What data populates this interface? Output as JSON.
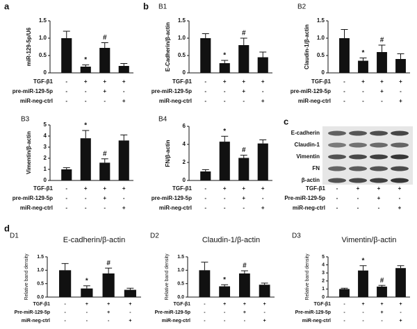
{
  "group_labels": [
    "b",
    "d"
  ],
  "western_blot": {
    "panel": "c",
    "bands": [
      "E-cadherin",
      "Claudin-1",
      "Vimentin",
      "FN",
      "β-actin"
    ],
    "treatments": [
      {
        "name": "TGF-β1",
        "signs": [
          "-",
          "+",
          "+",
          "+"
        ]
      },
      {
        "name": "Pre-miR-129-5p",
        "signs": [
          "-",
          "-",
          "+",
          "-"
        ]
      },
      {
        "name": "miR-neg-ctrl",
        "signs": [
          "-",
          "-",
          "-",
          "+"
        ]
      }
    ]
  },
  "chart_data": [
    {
      "type": "bar",
      "panel": "a",
      "y_label": "miR-129-5p/U6",
      "color": "#111111",
      "values": [
        1.0,
        0.18,
        0.72,
        0.2
      ],
      "errors": [
        0.2,
        0.05,
        0.15,
        0.07
      ],
      "annotations": [
        null,
        "*",
        "#",
        null
      ],
      "ylim": [
        0,
        1.5
      ],
      "yticks": [
        0,
        0.5,
        {
          "value": 1,
          "label": "1.0"
        },
        1.5
      ],
      "treatments": [
        {
          "name": "TGF-β1",
          "signs": [
            "-",
            "+",
            "+",
            "+"
          ]
        },
        {
          "name": "pre-miR-129-5p",
          "signs": [
            "-",
            "-",
            "+",
            "-"
          ]
        },
        {
          "name": "miR-neg-ctrl",
          "signs": [
            "-",
            "-",
            "-",
            "+"
          ]
        }
      ]
    },
    {
      "type": "bar",
      "panel": "B1",
      "y_label": "E-Cadherin/β-actin",
      "color": "#111111",
      "values": [
        1.0,
        0.28,
        0.8,
        0.45
      ],
      "errors": [
        0.13,
        0.08,
        0.2,
        0.15
      ],
      "annotations": [
        null,
        "*",
        "#",
        null
      ],
      "ylim": [
        0,
        1.5
      ],
      "yticks": [
        0,
        0.5,
        {
          "value": 1,
          "label": "1.0"
        },
        1.5
      ],
      "treatments": [
        {
          "name": "TGF-β1",
          "signs": [
            "-",
            "+",
            "+",
            "+"
          ]
        },
        {
          "name": "pre-miR-129-5p",
          "signs": [
            "-",
            "-",
            "+",
            "-"
          ]
        },
        {
          "name": "miR-neg-ctrl",
          "signs": [
            "-",
            "-",
            "-",
            "+"
          ]
        }
      ]
    },
    {
      "type": "bar",
      "panel": "B2",
      "y_label": "Claudin-1/β-actin",
      "color": "#111111",
      "values": [
        1.0,
        0.35,
        0.6,
        0.4
      ],
      "errors": [
        0.25,
        0.08,
        0.2,
        0.15
      ],
      "annotations": [
        null,
        "*",
        "#",
        null
      ],
      "ylim": [
        0,
        1.5
      ],
      "yticks": [
        0,
        0.5,
        {
          "value": 1,
          "label": "1.0"
        },
        1.5
      ],
      "treatments": [
        {
          "name": "TGF-β1",
          "signs": [
            "-",
            "+",
            "+",
            "+"
          ]
        },
        {
          "name": "pre-miR-129-5p",
          "signs": [
            "-",
            "-",
            "+",
            "-"
          ]
        },
        {
          "name": "miR-neg-ctrl",
          "signs": [
            "-",
            "-",
            "-",
            "+"
          ]
        }
      ]
    },
    {
      "type": "bar",
      "panel": "B3",
      "y_label": "Vimentin/β-actin",
      "color": "#111111",
      "values": [
        1.0,
        3.8,
        1.6,
        3.6
      ],
      "errors": [
        0.15,
        0.7,
        0.35,
        0.5
      ],
      "annotations": [
        null,
        "*",
        "#",
        null
      ],
      "ylim": [
        0,
        5
      ],
      "yticks": [
        0,
        1,
        2,
        3,
        4,
        5
      ],
      "treatments": [
        {
          "name": "TGF-β1",
          "signs": [
            "-",
            "+",
            "+",
            "+"
          ]
        },
        {
          "name": "pre-miR-129-5p",
          "signs": [
            "-",
            "-",
            "+",
            "-"
          ]
        },
        {
          "name": "miR-neg-ctrl",
          "signs": [
            "-",
            "-",
            "-",
            "+"
          ]
        }
      ]
    },
    {
      "type": "bar",
      "panel": "B4",
      "y_label": "FN/β-actin",
      "color": "#111111",
      "values": [
        1.0,
        4.3,
        2.5,
        4.1
      ],
      "errors": [
        0.2,
        0.6,
        0.3,
        0.4
      ],
      "annotations": [
        null,
        "*",
        "#",
        null
      ],
      "ylim": [
        0,
        6
      ],
      "yticks": [
        0,
        2,
        4,
        6
      ],
      "treatments": [
        {
          "name": "TGF-β1",
          "signs": [
            "-",
            "+",
            "+",
            "+"
          ]
        },
        {
          "name": "pre-miR-129-5p",
          "signs": [
            "-",
            "-",
            "+",
            "-"
          ]
        },
        {
          "name": "miR-neg-ctrl",
          "signs": [
            "-",
            "-",
            "-",
            "+"
          ]
        }
      ]
    },
    {
      "type": "bar",
      "panel": "D1",
      "title": "E-cadherin/β-actin",
      "y_label": "Relative band density",
      "color": "#111111",
      "values": [
        1.0,
        0.32,
        0.88,
        0.27
      ],
      "errors": [
        0.25,
        0.1,
        0.2,
        0.06
      ],
      "annotations": [
        null,
        "*",
        "#",
        null
      ],
      "ylim": [
        0,
        1.5
      ],
      "yticks": [
        {
          "value": 0,
          "label": "0.0"
        },
        0.5,
        {
          "value": 1,
          "label": "1.0"
        },
        1.5
      ],
      "treatments": [
        {
          "name": "TGF-β1",
          "signs": [
            "-",
            "+",
            "+",
            "+"
          ]
        },
        {
          "name": "Pre-miR-129-5p",
          "signs": [
            "-",
            "-",
            "+",
            "-"
          ]
        },
        {
          "name": "miR-neg-ctrl",
          "signs": [
            "-",
            "-",
            "-",
            "+"
          ]
        }
      ]
    },
    {
      "type": "bar",
      "panel": "D2",
      "title": "Claudin-1/β-actin",
      "y_label": "Relative band density",
      "color": "#111111",
      "values": [
        1.0,
        0.4,
        0.88,
        0.46
      ],
      "errors": [
        0.3,
        0.06,
        0.1,
        0.06
      ],
      "annotations": [
        null,
        "*",
        "#",
        null
      ],
      "ylim": [
        0,
        1.5
      ],
      "yticks": [
        {
          "value": 0,
          "label": "0.0"
        },
        0.5,
        {
          "value": 1,
          "label": "1.0"
        },
        1.5
      ],
      "treatments": [
        {
          "name": "TGF-β1",
          "signs": [
            "-",
            "+",
            "+",
            "+"
          ]
        },
        {
          "name": "Pre-miR-129-5p",
          "signs": [
            "-",
            "-",
            "+",
            "-"
          ]
        },
        {
          "name": "miR-neg-ctrl",
          "signs": [
            "-",
            "-",
            "-",
            "+"
          ]
        }
      ]
    },
    {
      "type": "bar",
      "panel": "D3",
      "title": "Vimentin/β-actin",
      "y_label": "Relative band density",
      "color": "#111111",
      "values": [
        1.0,
        3.3,
        1.3,
        3.6
      ],
      "errors": [
        0.1,
        0.6,
        0.15,
        0.3
      ],
      "annotations": [
        null,
        "*",
        "#",
        null
      ],
      "ylim": [
        0,
        5
      ],
      "yticks": [
        0,
        1,
        2,
        3,
        4,
        5
      ],
      "treatments": [
        {
          "name": "TGF-β1",
          "signs": [
            "-",
            "+",
            "+",
            "+"
          ]
        },
        {
          "name": "Pre-miR-129-5p",
          "signs": [
            "-",
            "-",
            "+",
            "-"
          ]
        },
        {
          "name": "miR-neg-ctrl",
          "signs": [
            "-",
            "-",
            "-",
            "+"
          ]
        }
      ]
    }
  ]
}
